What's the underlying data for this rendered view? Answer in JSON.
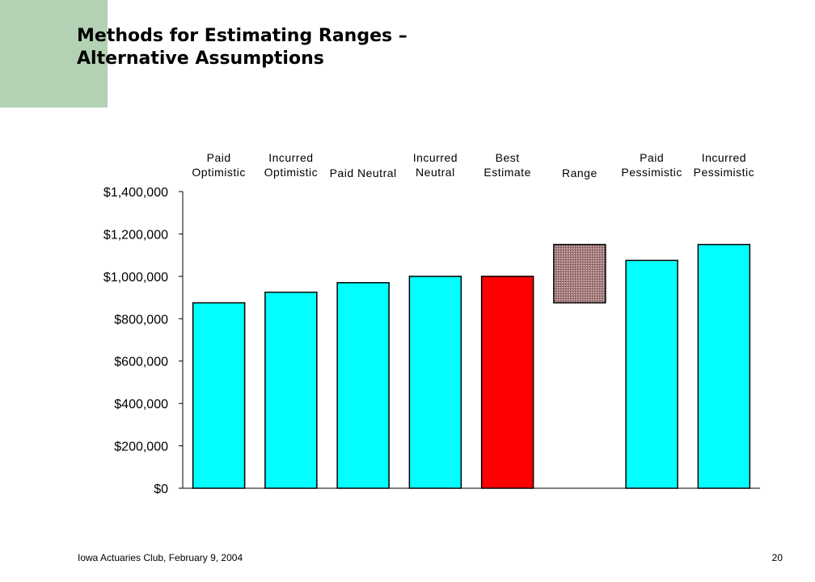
{
  "slide": {
    "title": "Methods for Estimating Ranges –\nAlternative Assumptions",
    "footer_left": "Iowa Actuaries Club, February 9, 2004",
    "page_number": "20",
    "accent_color": "#b3d1b3"
  },
  "chart_data": {
    "type": "bar",
    "categories": [
      "Paid Optimistic",
      "Incurred Optimistic",
      "Paid Neutral",
      "Incurred Neutral",
      "Best Estimate",
      "Range",
      "Paid Pessimistic",
      "Incurred Pessimistic"
    ],
    "series": [
      {
        "values": [
          875000,
          925000,
          970000,
          1000000,
          1000000,
          null,
          1075000,
          1150000
        ],
        "colors": [
          "#00ffff",
          "#00ffff",
          "#00ffff",
          "#00ffff",
          "#ff0000",
          null,
          "#00ffff",
          "#00ffff"
        ]
      }
    ],
    "range": {
      "category": "Range",
      "low": 875000,
      "high": 1150000,
      "color": "#a87f7f",
      "pattern": "hatched"
    },
    "yticks": [
      "$0",
      "$200,000",
      "$400,000",
      "$600,000",
      "$800,000",
      "$1,000,000",
      "$1,200,000",
      "$1,400,000"
    ],
    "ylim": [
      0,
      1400000
    ],
    "title": "",
    "xlabel": "",
    "ylabel": "",
    "grid": false,
    "legend": "none",
    "category_label_position": "top"
  }
}
